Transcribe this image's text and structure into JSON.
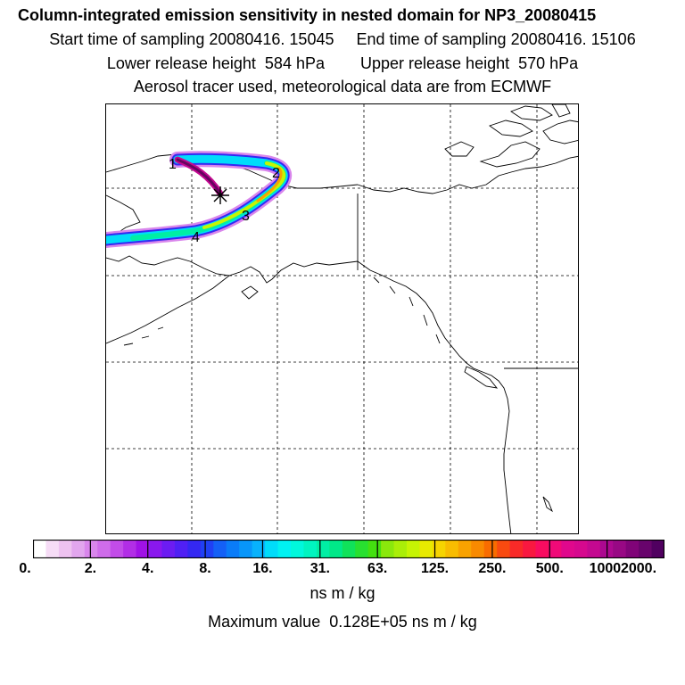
{
  "header": {
    "title": "Column-integrated emission sensitivity in nested domain for NP3_20080415",
    "line2": "Start time of sampling 20080416. 15045     End time of sampling 20080416. 15106",
    "line3": "Lower release height  584 hPa        Upper release height  570 hPa",
    "line4": "Aerosol tracer used, meteorological data are from ECMWF"
  },
  "map": {
    "release_marker": "asterisk-marker",
    "day_labels": [
      "1",
      "2",
      "3",
      "4"
    ]
  },
  "colorbar": {
    "tick_labels": [
      "0.",
      "2.",
      "4.",
      "8.",
      "16.",
      "31.",
      "63.",
      "125.",
      "250.",
      "500.",
      "1000.",
      "2000."
    ],
    "colors": [
      "#ffffff",
      "#f6dcf6",
      "#eec2f0",
      "#e2a6ee",
      "#d986ec",
      "#cf6cea",
      "#c24ce8",
      "#b22ee6",
      "#a012e6",
      "#8a18ee",
      "#6c1cf2",
      "#5020f4",
      "#3428f2",
      "#2040f4",
      "#1460f6",
      "#0a7cf8",
      "#0896fa",
      "#08b2fc",
      "#00dcfa",
      "#00f2f2",
      "#00f8dc",
      "#00f4c0",
      "#00eea4",
      "#00e888",
      "#10e25a",
      "#28e030",
      "#44e010",
      "#8ae80c",
      "#aaee08",
      "#c6f404",
      "#e8ea00",
      "#f6d400",
      "#f8bc00",
      "#f8a200",
      "#f88a00",
      "#f86c00",
      "#f84a10",
      "#f82a28",
      "#f81840",
      "#f80c60",
      "#f00a78",
      "#e0088c",
      "#d6088e",
      "#c40890",
      "#ac0890",
      "#980884",
      "#800478",
      "#68046c",
      "#500060"
    ],
    "units": "ns m / kg"
  },
  "footer": {
    "max_value": "Maximum value  0.128E+05 ns m / kg"
  }
}
